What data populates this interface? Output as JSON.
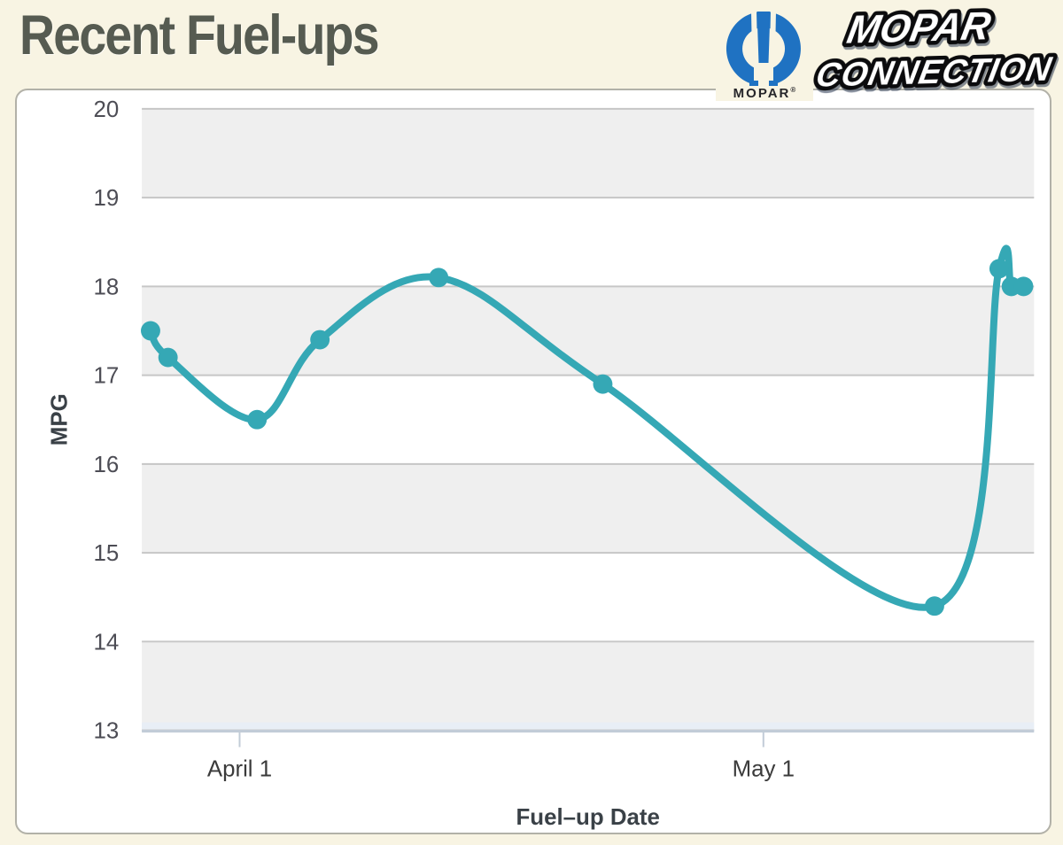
{
  "page": {
    "background": "#f8f4e3",
    "card_background": "#ffffff",
    "card_border": "#b2b1a8",
    "title_color": "#565b51"
  },
  "header": {
    "title": "Recent Fuel-ups",
    "logo": {
      "brand": "MOPAR",
      "registered": "®",
      "line1": "MOPAR",
      "line2": "CONNECTION",
      "blue": "#1f72c2",
      "outline": "#0b0b0d",
      "shadow": "#253а50"
    }
  },
  "chart_data": {
    "type": "line",
    "title": "Recent Fuel-ups",
    "xlabel": "Fuel–up Date",
    "ylabel": "MPG",
    "ylim": [
      13,
      20
    ],
    "y_ticks": [
      20,
      19,
      18,
      17,
      16,
      15,
      14,
      13
    ],
    "x_ticks": [
      {
        "label": "April 1",
        "day": 0
      },
      {
        "label": "May 1",
        "day": 30
      }
    ],
    "x_range_days": [
      -5.6,
      45.5
    ],
    "shaded_bands": [
      [
        19,
        20
      ],
      [
        17,
        18
      ],
      [
        15,
        16
      ],
      [
        13,
        14
      ]
    ],
    "grid": "horizontal-lines-every-unit",
    "legend": "none",
    "series": [
      {
        "name": "MPG",
        "points": [
          {
            "date": "Mar 27",
            "day": -5.1,
            "mpg": 17.5
          },
          {
            "date": "Mar 28",
            "day": -4.1,
            "mpg": 17.2
          },
          {
            "date": "Apr 2",
            "day": 1.0,
            "mpg": 16.5
          },
          {
            "date": "Apr 6",
            "day": 4.6,
            "mpg": 17.4
          },
          {
            "date": "Apr 12",
            "day": 11.4,
            "mpg": 18.1
          },
          {
            "date": "Apr 22",
            "day": 20.8,
            "mpg": 16.9
          },
          {
            "date": "May 11",
            "day": 39.8,
            "mpg": 14.4
          },
          {
            "date": "May 14",
            "day": 43.5,
            "mpg": 18.2
          },
          {
            "date": "May 15",
            "day": 44.2,
            "mpg": 18.0
          },
          {
            "date": "May 16",
            "day": 44.9,
            "mpg": 18.0
          }
        ]
      }
    ],
    "colors": {
      "line": "#35a8b5",
      "marker": "#35a8b5",
      "band": "#efefef",
      "gridline": "#c6c6c6",
      "axis_line": "#c2ccd7",
      "axis_strip": "#e8eef6",
      "tick_label": "#4d4d55",
      "axis_title": "#3a4147"
    }
  }
}
